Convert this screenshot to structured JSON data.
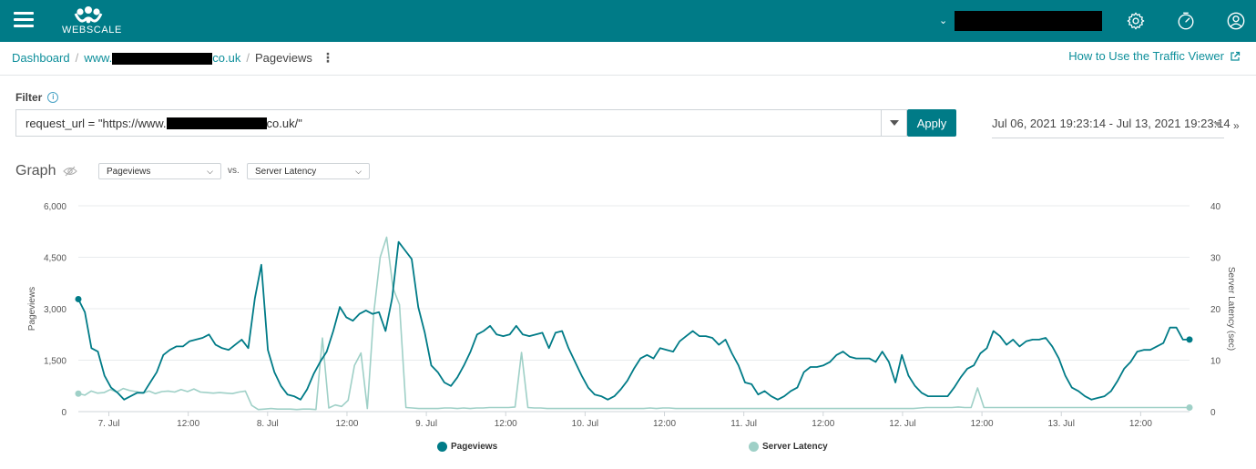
{
  "app": {
    "brand": "WEBSCALE"
  },
  "breadcrumb": {
    "dashboard": "Dashboard",
    "site_prefix": "www.",
    "site_suffix": "co.uk",
    "current": "Pageviews",
    "separator": "/"
  },
  "help": {
    "label": "How to Use the Traffic Viewer"
  },
  "filter": {
    "label": "Filter",
    "query_prefix": "request_url = \"https://www.",
    "query_suffix": "co.uk/\"",
    "apply_label": "Apply"
  },
  "date_range": {
    "value": "Jul 06, 2021 19:23:14 - Jul 13, 2021 19:23:14"
  },
  "graph": {
    "title": "Graph",
    "metric_primary": "Pageviews",
    "vs_label": "vs.",
    "metric_secondary": "Server Latency"
  },
  "colors": {
    "primary": "#007b87",
    "secondary": "#9fd0c7",
    "accent": "#0e8f9b"
  },
  "icons": [
    "menu-icon",
    "webscale-logo",
    "chevron-down-icon",
    "gear-icon",
    "timer-icon",
    "user-icon",
    "external-link-icon",
    "info-icon",
    "eye-icon",
    "kebab-menu-icon",
    "double-chevron-right-icon"
  ],
  "chart_data": {
    "type": "line",
    "x_range": [
      "2021-07-06 19:23",
      "2021-07-13 19:23"
    ],
    "x_ticks": [
      "7. Jul",
      "12:00",
      "8. Jul",
      "12:00",
      "9. Jul",
      "12:00",
      "10. Jul",
      "12:00",
      "11. Jul",
      "12:00",
      "12. Jul",
      "12:00",
      "13. Jul",
      "12:00"
    ],
    "y_left": {
      "label": "Pageviews",
      "ticks": [
        "0",
        "1,500",
        "3,000",
        "4,500",
        "6,000"
      ],
      "range": [
        0,
        6000
      ]
    },
    "y_right": {
      "label": "Server Latency (sec)",
      "ticks": [
        "0",
        "10",
        "20",
        "30",
        "40"
      ],
      "range": [
        0,
        40
      ]
    },
    "grid": true,
    "legend_position": "bottom",
    "sample_interval_hours": 1,
    "series": [
      {
        "name": "Pageviews",
        "axis": "left",
        "values": [
          3280,
          2900,
          1850,
          1750,
          1050,
          700,
          550,
          350,
          450,
          550,
          550,
          850,
          1150,
          1650,
          1800,
          1900,
          1900,
          2050,
          2100,
          2150,
          2250,
          1950,
          1850,
          1800,
          1950,
          2100,
          1850,
          3300,
          4280,
          1800,
          1150,
          750,
          500,
          450,
          350,
          650,
          1100,
          1450,
          1750,
          2350,
          3050,
          2750,
          2650,
          2850,
          2950,
          2850,
          2900,
          2350,
          3300,
          4950,
          4700,
          4450,
          3050,
          2300,
          1350,
          1150,
          850,
          750,
          1000,
          1350,
          1750,
          2250,
          2350,
          2500,
          2250,
          2200,
          2250,
          2500,
          2250,
          2200,
          2250,
          2300,
          1850,
          2300,
          2350,
          1850,
          1450,
          1050,
          700,
          500,
          450,
          350,
          450,
          650,
          900,
          1250,
          1550,
          1650,
          1550,
          1850,
          1800,
          1750,
          2050,
          2200,
          2350,
          2200,
          2200,
          2150,
          1950,
          2100,
          1700,
          1350,
          850,
          800,
          500,
          600,
          450,
          350,
          450,
          600,
          700,
          1150,
          1300,
          1300,
          1350,
          1450,
          1650,
          1750,
          1600,
          1550,
          1550,
          1550,
          1450,
          1750,
          1450,
          850,
          1650,
          1050,
          750,
          550,
          450,
          450,
          450,
          450,
          700,
          1000,
          1250,
          1350,
          1700,
          1850,
          2350,
          2200,
          1950,
          2100,
          1900,
          2050,
          2100,
          2100,
          2150,
          1900,
          1550,
          1050,
          700,
          600,
          450,
          350,
          400,
          450,
          600,
          900,
          1250,
          1450,
          1750,
          1800,
          1800,
          1900,
          2000,
          2450,
          2450,
          2100,
          2100
        ]
      },
      {
        "name": "Server Latency",
        "axis": "right",
        "values": [
          3.5,
          3.2,
          4.0,
          3.6,
          3.7,
          4.3,
          3.8,
          4.5,
          4.1,
          3.9,
          3.6,
          4.0,
          3.5,
          3.9,
          4.0,
          3.8,
          4.3,
          3.9,
          4.4,
          3.8,
          3.7,
          3.6,
          3.7,
          3.6,
          3.5,
          3.8,
          4.0,
          1.2,
          0.4,
          0.5,
          0.6,
          0.5,
          0.5,
          0.5,
          0.4,
          0.5,
          0.5,
          0.4,
          14.3,
          0.7,
          1.3,
          1.0,
          2.2,
          9.0,
          11.4,
          0.6,
          19.2,
          30.0,
          33.9,
          24.0,
          20.8,
          0.8,
          0.7,
          0.6,
          0.6,
          0.6,
          0.6,
          0.7,
          0.7,
          0.6,
          0.7,
          0.6,
          0.7,
          0.7,
          0.8,
          0.8,
          0.8,
          0.8,
          0.9,
          11.5,
          0.8,
          0.7,
          0.7,
          0.6,
          0.6,
          0.6,
          0.6,
          0.6,
          0.6,
          0.6,
          0.6,
          0.6,
          0.6,
          0.6,
          0.6,
          0.6,
          0.6,
          0.6,
          0.6,
          0.7,
          0.6,
          0.7,
          0.7,
          0.6,
          0.6,
          0.6,
          0.6,
          0.6,
          0.6,
          0.6,
          0.6,
          0.6,
          0.6,
          0.6,
          0.6,
          0.6,
          0.6,
          0.6,
          0.6,
          0.6,
          0.6,
          0.6,
          0.6,
          0.6,
          0.6,
          0.6,
          0.6,
          0.6,
          0.6,
          0.6,
          0.6,
          0.6,
          0.6,
          0.6,
          0.6,
          0.6,
          0.6,
          0.6,
          0.6,
          0.6,
          0.6,
          0.7,
          0.8,
          0.8,
          0.8,
          0.8,
          0.8,
          0.9,
          0.8,
          0.8,
          4.6,
          0.8,
          0.8,
          0.8,
          0.8,
          0.8,
          0.8,
          0.8,
          0.8,
          0.8,
          0.8,
          0.8,
          0.8,
          0.8,
          0.8,
          0.8,
          0.8,
          0.8,
          0.8,
          0.8,
          0.8,
          0.8,
          0.8,
          0.8,
          0.8,
          0.8,
          0.8,
          0.8,
          0.8,
          0.8,
          0.8,
          0.8,
          0.8,
          0.8
        ]
      }
    ]
  }
}
